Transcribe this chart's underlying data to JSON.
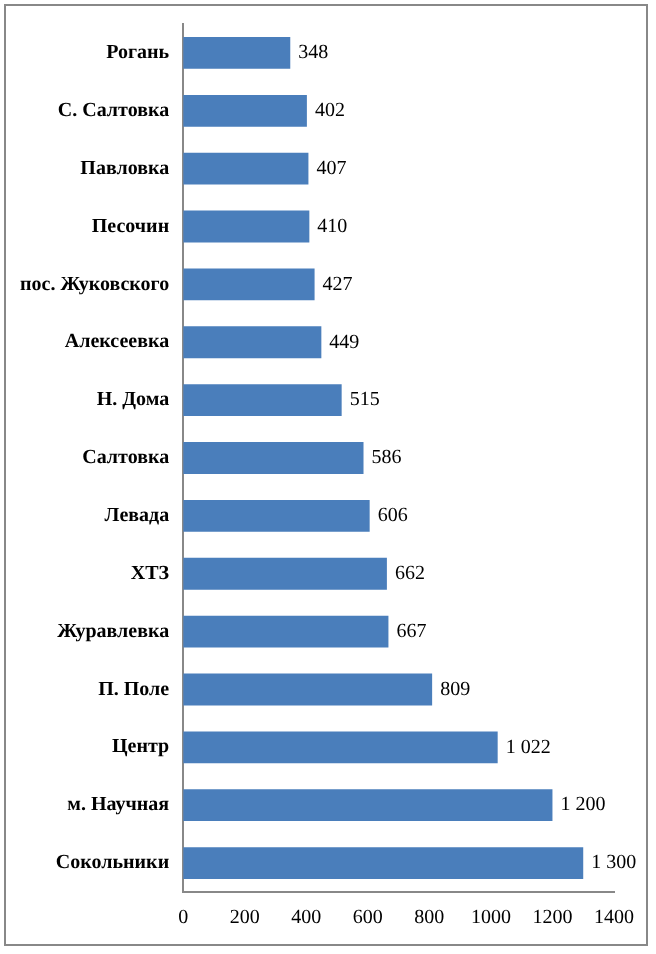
{
  "chart_data": {
    "type": "bar",
    "orientation": "horizontal",
    "categories": [
      "Рогань",
      "С. Салтовка",
      "Павловка",
      "Песочин",
      "пос. Жуковского",
      "Алексеевка",
      "Н. Дома",
      "Салтовка",
      "Левада",
      "ХТЗ",
      "Журавлевка",
      "П. Поле",
      "Центр",
      "м. Научная",
      "Сокольники"
    ],
    "values": [
      348,
      402,
      407,
      410,
      427,
      449,
      515,
      586,
      606,
      662,
      667,
      809,
      1022,
      1200,
      1300
    ],
    "value_labels": [
      "348",
      "402",
      "407",
      "410",
      "427",
      "449",
      "515",
      "586",
      "606",
      "662",
      "667",
      "809",
      "1 022",
      "1 200",
      "1 300"
    ],
    "color": "#4a7ebb",
    "xlim": [
      0,
      1400
    ],
    "xticks": [
      0,
      200,
      400,
      600,
      800,
      1000,
      1200,
      1400
    ],
    "grid": false,
    "legend": false
  }
}
